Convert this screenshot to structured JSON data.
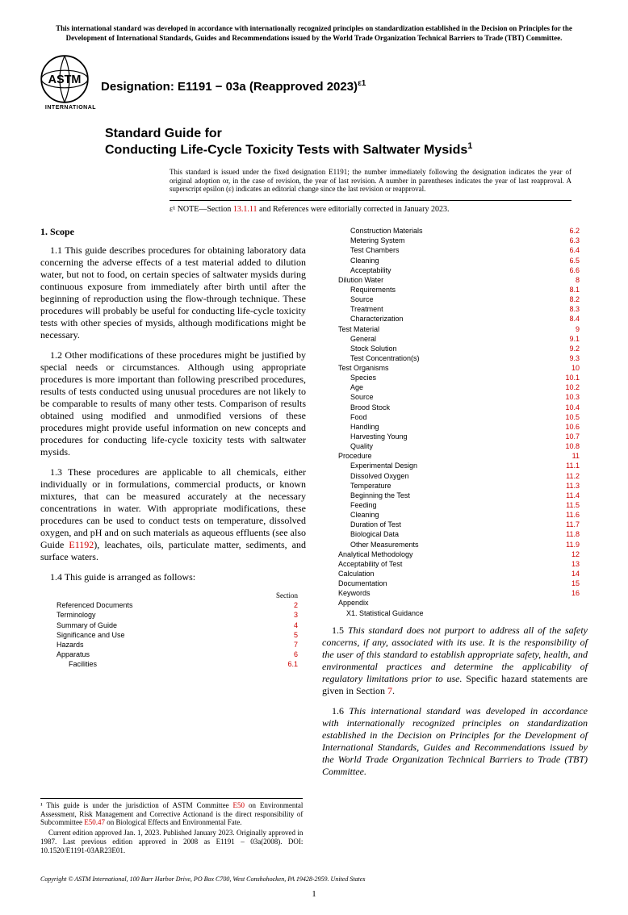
{
  "top_notice": "This international standard was developed in accordance with internationally recognized principles on standardization established in the Decision on Principles for the Development of International Standards, Guides and Recommendations issued by the World Trade Organization Technical Barriers to Trade (TBT) Committee.",
  "logo_label": "INTERNATIONAL",
  "designation_prefix": "Designation: E1191 − 03a (Reapproved 2023)",
  "designation_sup": "ε1",
  "title1": "Standard Guide for",
  "title2": "Conducting Life-Cycle Toxicity Tests with Saltwater Mysids",
  "title2_sup": "1",
  "issuance": "This standard is issued under the fixed designation E1191; the number immediately following the designation indicates the year of original adoption or, in the case of revision, the year of last revision. A number in parentheses indicates the year of last reapproval. A superscript epsilon (ε) indicates an editorial change since the last revision or reapproval.",
  "note_prefix": "ε¹ NOTE—Section ",
  "note_ref": "13.1.11",
  "note_suffix": " and References were editorially corrected in January 2023.",
  "scope_head": "1. Scope",
  "p11": "1.1 This guide describes procedures for obtaining laboratory data concerning the adverse effects of a test material added to dilution water, but not to food, on certain species of saltwater mysids during continuous exposure from immediately after birth until after the beginning of reproduction using the flow-through technique. These procedures will probably be useful for conducting life-cycle toxicity tests with other species of mysids, although modifications might be necessary.",
  "p12": "1.2 Other modifications of these procedures might be justified by special needs or circumstances. Although using appropriate procedures is more important than following prescribed procedures, results of tests conducted using unusual procedures are not likely to be comparable to results of many other tests. Comparison of results obtained using modified and unmodified versions of these procedures might provide useful information on new concepts and procedures for conducting life-cycle toxicity tests with saltwater mysids.",
  "p13a": "1.3 These procedures are applicable to all chemicals, either individually or in formulations, commercial products, or known mixtures, that can be measured accurately at the necessary concentrations in water. With appropriate modifications, these procedures can be used to conduct tests on temperature, dissolved oxygen, and pH and on such materials as aqueous effluents (see also Guide ",
  "p13ref": "E1192",
  "p13b": "), leachates, oils, particulate matter, sediments, and surface waters.",
  "p14": "1.4 This guide is arranged as follows:",
  "section_label": "Section",
  "toc_left": [
    {
      "label": "Referenced Documents",
      "num": "2",
      "indent": 1
    },
    {
      "label": "Terminology",
      "num": "3",
      "indent": 1
    },
    {
      "label": "Summary of Guide",
      "num": "4",
      "indent": 1
    },
    {
      "label": "Significance and Use",
      "num": "5",
      "indent": 1
    },
    {
      "label": "Hazards",
      "num": "7",
      "indent": 1
    },
    {
      "label": "Apparatus",
      "num": "6",
      "indent": 1
    },
    {
      "label": "Facilities",
      "num": "6.1",
      "indent": 2
    }
  ],
  "toc_right": [
    {
      "label": "Construction Materials",
      "num": "6.2",
      "indent": 2
    },
    {
      "label": "Metering System",
      "num": "6.3",
      "indent": 2
    },
    {
      "label": "Test Chambers",
      "num": "6.4",
      "indent": 2
    },
    {
      "label": "Cleaning",
      "num": "6.5",
      "indent": 2
    },
    {
      "label": "Acceptability",
      "num": "6.6",
      "indent": 2
    },
    {
      "label": "Dilution Water",
      "num": "8",
      "indent": 1
    },
    {
      "label": "Requirements",
      "num": "8.1",
      "indent": 2
    },
    {
      "label": "Source",
      "num": "8.2",
      "indent": 2
    },
    {
      "label": "Treatment",
      "num": "8.3",
      "indent": 2
    },
    {
      "label": "Characterization",
      "num": "8.4",
      "indent": 2
    },
    {
      "label": "Test Material",
      "num": "9",
      "indent": 1
    },
    {
      "label": "General",
      "num": "9.1",
      "indent": 2
    },
    {
      "label": "Stock Solution",
      "num": "9.2",
      "indent": 2
    },
    {
      "label": "Test Concentration(s)",
      "num": "9.3",
      "indent": 2
    },
    {
      "label": "Test Organisms",
      "num": "10",
      "indent": 1
    },
    {
      "label": "Species",
      "num": "10.1",
      "indent": 2
    },
    {
      "label": "Age",
      "num": "10.2",
      "indent": 2
    },
    {
      "label": "Source",
      "num": "10.3",
      "indent": 2
    },
    {
      "label": "Brood Stock",
      "num": "10.4",
      "indent": 2
    },
    {
      "label": "Food",
      "num": "10.5",
      "indent": 2
    },
    {
      "label": "Handling",
      "num": "10.6",
      "indent": 2
    },
    {
      "label": "Harvesting Young",
      "num": "10.7",
      "indent": 2
    },
    {
      "label": "Quality",
      "num": "10.8",
      "indent": 2
    },
    {
      "label": "Procedure",
      "num": "11",
      "indent": 1
    },
    {
      "label": "Experimental Design",
      "num": "11.1",
      "indent": 2
    },
    {
      "label": "Dissolved Oxygen",
      "num": "11.2",
      "indent": 2
    },
    {
      "label": "Temperature",
      "num": "11.3",
      "indent": 2
    },
    {
      "label": "Beginning the Test",
      "num": "11.4",
      "indent": 2
    },
    {
      "label": "Feeding",
      "num": "11.5",
      "indent": 2
    },
    {
      "label": "Cleaning",
      "num": "11.6",
      "indent": 2
    },
    {
      "label": "Duration of Test",
      "num": "11.7",
      "indent": 2
    },
    {
      "label": "Biological Data",
      "num": "11.8",
      "indent": 2
    },
    {
      "label": "Other Measurements",
      "num": "11.9",
      "indent": 2
    },
    {
      "label": "Analytical Methodology",
      "num": "12",
      "indent": 1
    },
    {
      "label": "Acceptability of Test",
      "num": "13",
      "indent": 1
    },
    {
      "label": "Calculation",
      "num": "14",
      "indent": 1
    },
    {
      "label": "Documentation",
      "num": "15",
      "indent": 1
    },
    {
      "label": "Keywords",
      "num": "16",
      "indent": 1
    }
  ],
  "appendix_label": "Appendix",
  "appendix_item": "X1. Statistical Guidance",
  "p15a": "1.5 ",
  "p15b": "This standard does not purport to address all of the safety concerns, if any, associated with its use. It is the responsibility of the user of this standard to establish appropriate safety, health, and environmental practices and determine the applicability of regulatory limitations prior to use.",
  "p15c": " Specific hazard statements are given in Section ",
  "p15ref": "7",
  "p15d": ".",
  "p16a": "1.6 ",
  "p16b": "This international standard was developed in accordance with internationally recognized principles on standardization established in the Decision on Principles for the Development of International Standards, Guides and Recommendations issued by the World Trade Organization Technical Barriers to Trade (TBT) Committee.",
  "fn1a": "¹ This guide is under the jurisdiction of ASTM Committee ",
  "fn1ref1": "E50",
  "fn1b": " on Environmental Assessment, Risk Management and Corrective Actionand is the direct responsibility of Subcommittee ",
  "fn1ref2": "E50.47",
  "fn1c": " on Biological Effects and Environmental Fate.",
  "fn2": "Current edition approved Jan. 1, 2023. Published January 2023. Originally approved in 1987. Last previous edition approved in 2008 as E1191 – 03a(2008). DOI: 10.1520/E1191-03AR23E01.",
  "copyright": "Copyright © ASTM International, 100 Barr Harbor Drive, PO Box C700, West Conshohocken, PA 19428-2959. United States",
  "pagenum": "1"
}
